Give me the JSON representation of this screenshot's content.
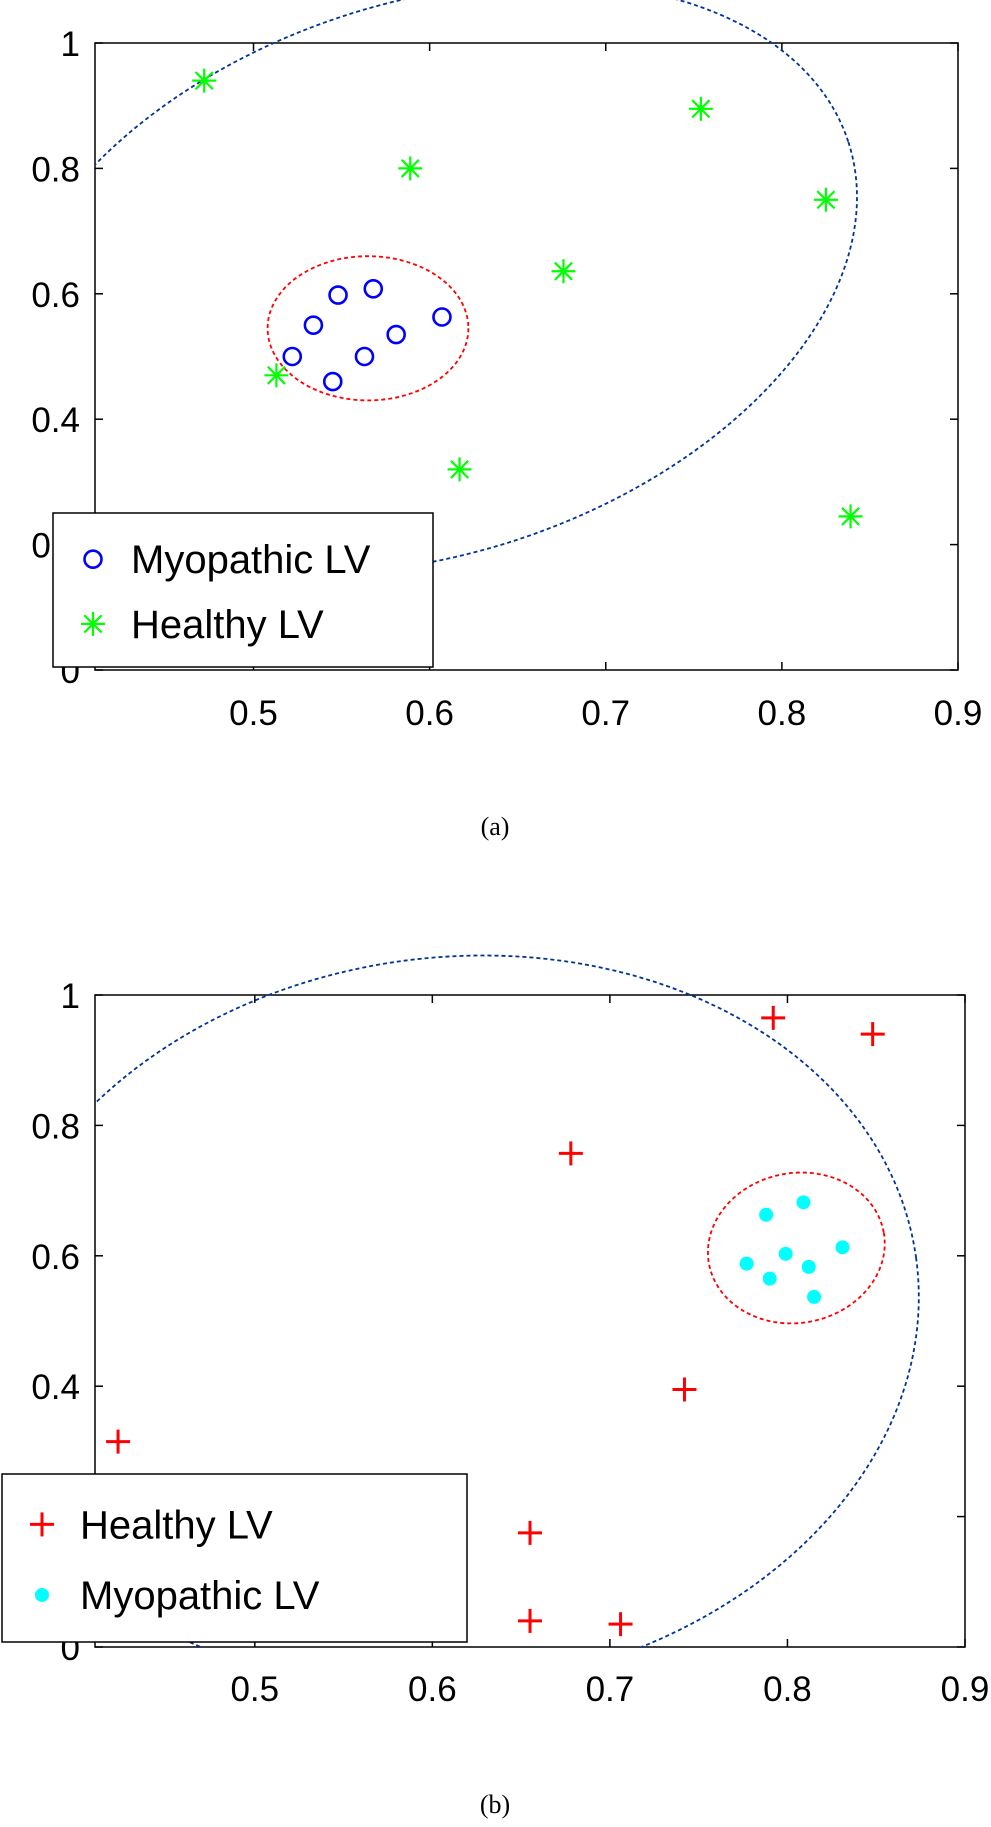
{
  "chart_data": [
    {
      "type": "scatter",
      "caption": "(a)",
      "xlim": [
        0.41,
        0.9
      ],
      "ylim": [
        0,
        1
      ],
      "xticks": [
        "0.5",
        "0.6",
        "0.7",
        "0.8",
        "0.9"
      ],
      "yticks": [
        "0",
        "0.2",
        "0.4",
        "0.6",
        "0.8",
        "1"
      ],
      "grid": false,
      "legend": "bottom-left",
      "series": [
        {
          "name": "Myopathic LV",
          "marker": "circle",
          "color": "#0000ff",
          "points": [
            {
              "x": 0.548,
              "y": 0.598
            },
            {
              "x": 0.568,
              "y": 0.608
            },
            {
              "x": 0.534,
              "y": 0.55
            },
            {
              "x": 0.522,
              "y": 0.5
            },
            {
              "x": 0.545,
              "y": 0.46
            },
            {
              "x": 0.563,
              "y": 0.5
            },
            {
              "x": 0.581,
              "y": 0.535
            },
            {
              "x": 0.607,
              "y": 0.563
            }
          ]
        },
        {
          "name": "Healthy LV",
          "marker": "asterisk",
          "color": "#00ff00",
          "points": [
            {
              "x": 0.472,
              "y": 0.94
            },
            {
              "x": 0.589,
              "y": 0.8
            },
            {
              "x": 0.676,
              "y": 0.636
            },
            {
              "x": 0.754,
              "y": 0.895
            },
            {
              "x": 0.825,
              "y": 0.75
            },
            {
              "x": 0.513,
              "y": 0.47
            },
            {
              "x": 0.617,
              "y": 0.32
            },
            {
              "x": 0.839,
              "y": 0.245
            }
          ]
        }
      ],
      "ellipses": [
        {
          "cx": 0.6,
          "cy": 0.625,
          "rx": 0.25,
          "ry": 0.44,
          "angle": -18,
          "color": "#003399"
        },
        {
          "cx": 0.565,
          "cy": 0.545,
          "rx": 0.057,
          "ry": 0.115,
          "angle": 0,
          "color": "#ff0000"
        }
      ]
    },
    {
      "type": "scatter",
      "caption": "(b)",
      "xlim": [
        0.41,
        0.9
      ],
      "ylim": [
        0,
        1
      ],
      "xticks": [
        "0.5",
        "0.6",
        "0.7",
        "0.8",
        "0.9"
      ],
      "yticks": [
        "0",
        "0.2",
        "0.4",
        "0.6",
        "0.8",
        "1"
      ],
      "grid": false,
      "legend": "bottom-left",
      "series": [
        {
          "name": "Healthy LV",
          "marker": "plus",
          "color": "#ff0000",
          "points": [
            {
              "x": 0.792,
              "y": 0.965
            },
            {
              "x": 0.848,
              "y": 0.94
            },
            {
              "x": 0.678,
              "y": 0.757
            },
            {
              "x": 0.742,
              "y": 0.395
            },
            {
              "x": 0.423,
              "y": 0.315
            },
            {
              "x": 0.655,
              "y": 0.175
            },
            {
              "x": 0.655,
              "y": 0.04
            },
            {
              "x": 0.706,
              "y": 0.035
            }
          ]
        },
        {
          "name": "Myopathic LV",
          "marker": "filled-circle",
          "color": "#00ffff",
          "points": [
            {
              "x": 0.788,
              "y": 0.663
            },
            {
              "x": 0.809,
              "y": 0.682
            },
            {
              "x": 0.831,
              "y": 0.613
            },
            {
              "x": 0.799,
              "y": 0.603
            },
            {
              "x": 0.777,
              "y": 0.588
            },
            {
              "x": 0.812,
              "y": 0.583
            },
            {
              "x": 0.79,
              "y": 0.565
            },
            {
              "x": 0.815,
              "y": 0.537
            }
          ]
        }
      ],
      "ellipses": [
        {
          "cx": 0.61,
          "cy": 0.497,
          "rx": 0.265,
          "ry": 0.56,
          "angle": -8,
          "color": "#003399"
        },
        {
          "cx": 0.805,
          "cy": 0.612,
          "rx": 0.05,
          "ry": 0.115,
          "angle": -10,
          "color": "#ff0000"
        }
      ]
    }
  ]
}
